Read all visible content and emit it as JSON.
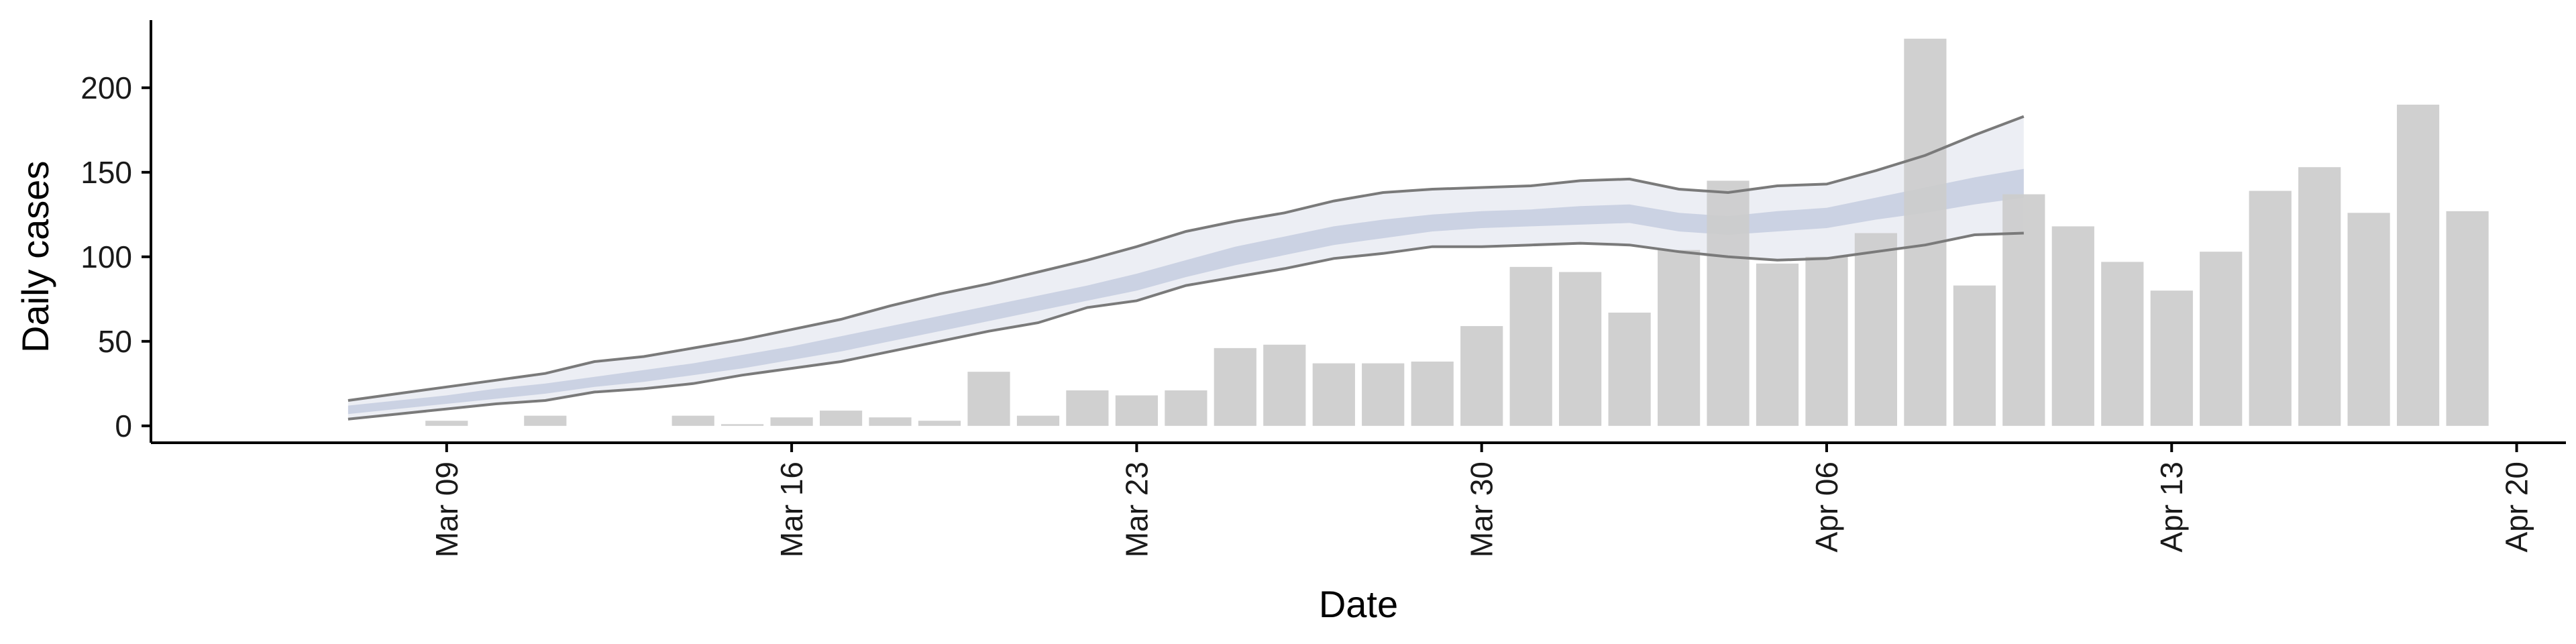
{
  "chart_data": {
    "type": "bar",
    "title": "",
    "xlabel": "Date",
    "ylabel": "Daily cases",
    "ylim": [
      -10,
      240
    ],
    "yticks": [
      0,
      50,
      100,
      150,
      200
    ],
    "x_ticks": [
      "Mar 09",
      "Mar 16",
      "Mar 23",
      "Mar 30",
      "Apr 06",
      "Apr 13",
      "Apr 20"
    ],
    "x_tick_dates": [
      "2020-03-09",
      "2020-03-16",
      "2020-03-23",
      "2020-03-30",
      "2020-04-06",
      "2020-04-13",
      "2020-04-20"
    ],
    "x_range": [
      "2020-03-03",
      "2020-04-21"
    ],
    "grid": false,
    "legend": "none",
    "colors": {
      "bars": "#cccccc",
      "band_outer": "#e9ebf2",
      "band_inner": "#c6ccdf",
      "bound_line": "#7a7a7a"
    },
    "bars": {
      "dates": [
        "2020-03-09",
        "2020-03-11",
        "2020-03-14",
        "2020-03-15",
        "2020-03-16",
        "2020-03-17",
        "2020-03-18",
        "2020-03-19",
        "2020-03-20",
        "2020-03-21",
        "2020-03-22",
        "2020-03-23",
        "2020-03-24",
        "2020-03-25",
        "2020-03-26",
        "2020-03-27",
        "2020-03-28",
        "2020-03-29",
        "2020-03-30",
        "2020-03-31",
        "2020-04-01",
        "2020-04-02",
        "2020-04-03",
        "2020-04-04",
        "2020-04-05",
        "2020-04-06",
        "2020-04-07",
        "2020-04-08",
        "2020-04-09",
        "2020-04-10",
        "2020-04-11",
        "2020-04-12",
        "2020-04-13",
        "2020-04-14",
        "2020-04-15",
        "2020-04-16",
        "2020-04-17",
        "2020-04-18",
        "2020-04-19",
        "2020-04-20"
      ],
      "values": [
        3,
        6,
        6,
        1,
        5,
        9,
        5,
        3,
        32,
        6,
        21,
        18,
        21,
        46,
        48,
        37,
        37,
        38,
        59,
        94,
        91,
        67,
        104,
        145,
        96,
        100,
        114,
        229,
        83,
        137,
        118,
        97,
        80,
        103,
        139,
        153,
        126,
        190,
        127,
        0
      ]
    },
    "estimate": {
      "dates": [
        "2020-03-07",
        "2020-03-08",
        "2020-03-09",
        "2020-03-10",
        "2020-03-11",
        "2020-03-12",
        "2020-03-13",
        "2020-03-14",
        "2020-03-15",
        "2020-03-16",
        "2020-03-17",
        "2020-03-18",
        "2020-03-19",
        "2020-03-20",
        "2020-03-21",
        "2020-03-22",
        "2020-03-23",
        "2020-03-24",
        "2020-03-25",
        "2020-03-26",
        "2020-03-27",
        "2020-03-28",
        "2020-03-29",
        "2020-03-30",
        "2020-03-31",
        "2020-04-01",
        "2020-04-02",
        "2020-04-03",
        "2020-04-04",
        "2020-04-05",
        "2020-04-06",
        "2020-04-07",
        "2020-04-08",
        "2020-04-09",
        "2020-04-10",
        "2020-04-11"
      ],
      "upper90": [
        15,
        19,
        23,
        27,
        31,
        38,
        41,
        46,
        51,
        57,
        63,
        71,
        78,
        84,
        91,
        98,
        106,
        115,
        121,
        126,
        133,
        138,
        140,
        141,
        142,
        145,
        146,
        140,
        138,
        142,
        143,
        151,
        160,
        172,
        183,
        null
      ],
      "lower90": [
        4,
        7,
        10,
        13,
        15,
        20,
        22,
        25,
        30,
        34,
        38,
        44,
        50,
        56,
        61,
        70,
        74,
        83,
        88,
        93,
        99,
        102,
        106,
        106,
        107,
        108,
        107,
        103,
        100,
        98,
        99,
        103,
        107,
        113,
        114,
        null
      ],
      "upper50": [
        12,
        15,
        18,
        22,
        25,
        29,
        33,
        37,
        42,
        47,
        53,
        59,
        65,
        71,
        77,
        83,
        90,
        98,
        106,
        112,
        118,
        122,
        125,
        127,
        128,
        130,
        131,
        126,
        124,
        127,
        129,
        135,
        141,
        147,
        152,
        null
      ],
      "lower50": [
        7,
        10,
        13,
        16,
        19,
        23,
        26,
        30,
        34,
        39,
        44,
        50,
        56,
        62,
        68,
        74,
        80,
        88,
        95,
        101,
        107,
        111,
        115,
        117,
        118,
        119,
        120,
        115,
        113,
        115,
        117,
        122,
        126,
        131,
        135,
        null
      ]
    }
  }
}
